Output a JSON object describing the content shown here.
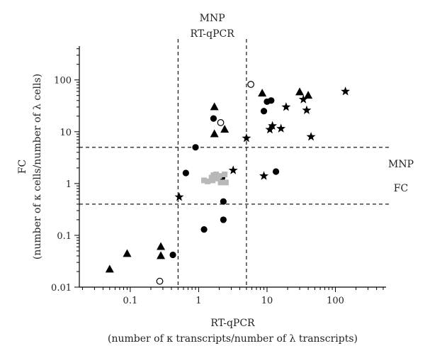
{
  "chart_data": {
    "type": "scatter",
    "title": "",
    "x_scale": "log",
    "y_scale": "log",
    "xlim": [
      0.018,
      550
    ],
    "ylim": [
      0.01,
      450
    ],
    "grid": false,
    "xlabel": "RT-qPCR",
    "xlabel_sub": "(number of κ transcripts/number of λ transcripts)",
    "ylabel": "FC",
    "ylabel_sub": "(number of κ cells/number of λ cells)",
    "x_ticks": [
      {
        "value": 0.1,
        "label": "0.1"
      },
      {
        "value": 1,
        "label": "1"
      },
      {
        "value": 10,
        "label": "10"
      },
      {
        "value": 100,
        "label": "100"
      }
    ],
    "y_ticks": [
      {
        "value": 0.01,
        "label": "0.01"
      },
      {
        "value": 0.1,
        "label": "0.1"
      },
      {
        "value": 1,
        "label": "1"
      },
      {
        "value": 10,
        "label": "10"
      },
      {
        "value": 100,
        "label": "100"
      }
    ],
    "reference_lines": [
      {
        "axis": "x",
        "value": 0.5
      },
      {
        "axis": "x",
        "value": 5
      },
      {
        "axis": "y",
        "value": 0.4
      },
      {
        "axis": "y",
        "value": 5
      }
    ],
    "region_labels": [
      {
        "lines": [
          "MNP",
          "RT-qPCR"
        ],
        "anchor": "top-center"
      },
      {
        "lines": [
          "MNP",
          "FC"
        ],
        "anchor": "right-middle"
      }
    ],
    "series": [
      {
        "marker": "triangle",
        "color": "#000000",
        "points": [
          [
            0.05,
            0.022
          ],
          [
            0.09,
            0.044
          ],
          [
            0.28,
            0.06
          ],
          [
            0.28,
            0.04
          ],
          [
            1.7,
            30
          ],
          [
            1.7,
            9
          ],
          [
            2.4,
            11
          ],
          [
            8.5,
            55
          ],
          [
            30,
            58
          ],
          [
            40,
            50
          ]
        ]
      },
      {
        "marker": "circle",
        "color": "#000000",
        "points": [
          [
            0.42,
            0.042
          ],
          [
            0.65,
            1.6
          ],
          [
            0.9,
            5
          ],
          [
            1.2,
            0.13
          ],
          [
            1.65,
            18
          ],
          [
            2.2,
            1.3
          ],
          [
            2.3,
            0.45
          ],
          [
            2.3,
            0.2
          ],
          [
            9,
            25
          ],
          [
            10,
            38
          ],
          [
            11.5,
            40
          ],
          [
            13.5,
            1.7
          ]
        ]
      },
      {
        "marker": "open-circle",
        "color": "#000000",
        "points": [
          [
            0.27,
            0.013
          ],
          [
            2.1,
            15
          ],
          [
            5.8,
            82
          ]
        ]
      },
      {
        "marker": "star",
        "color": "#000000",
        "points": [
          [
            0.52,
            0.55
          ],
          [
            3.2,
            1.8
          ],
          [
            5,
            7.5
          ],
          [
            9,
            1.4
          ],
          [
            11,
            11
          ],
          [
            12,
            13
          ],
          [
            16,
            11.5
          ],
          [
            19,
            30
          ],
          [
            34,
            42
          ],
          [
            38,
            26
          ],
          [
            44,
            8
          ],
          [
            140,
            60
          ]
        ]
      },
      {
        "marker": "square",
        "color": "#b8b8b8",
        "points": [
          [
            1.2,
            1.15
          ],
          [
            1.35,
            1.1
          ],
          [
            1.55,
            1.3
          ],
          [
            1.6,
            1.15
          ],
          [
            1.65,
            1.45
          ],
          [
            1.8,
            1.5
          ],
          [
            2.0,
            1.4
          ],
          [
            2.1,
            1.05
          ],
          [
            2.5,
            1.05
          ],
          [
            2.4,
            1.5
          ],
          [
            1.9,
            1.25
          ]
        ]
      }
    ]
  }
}
